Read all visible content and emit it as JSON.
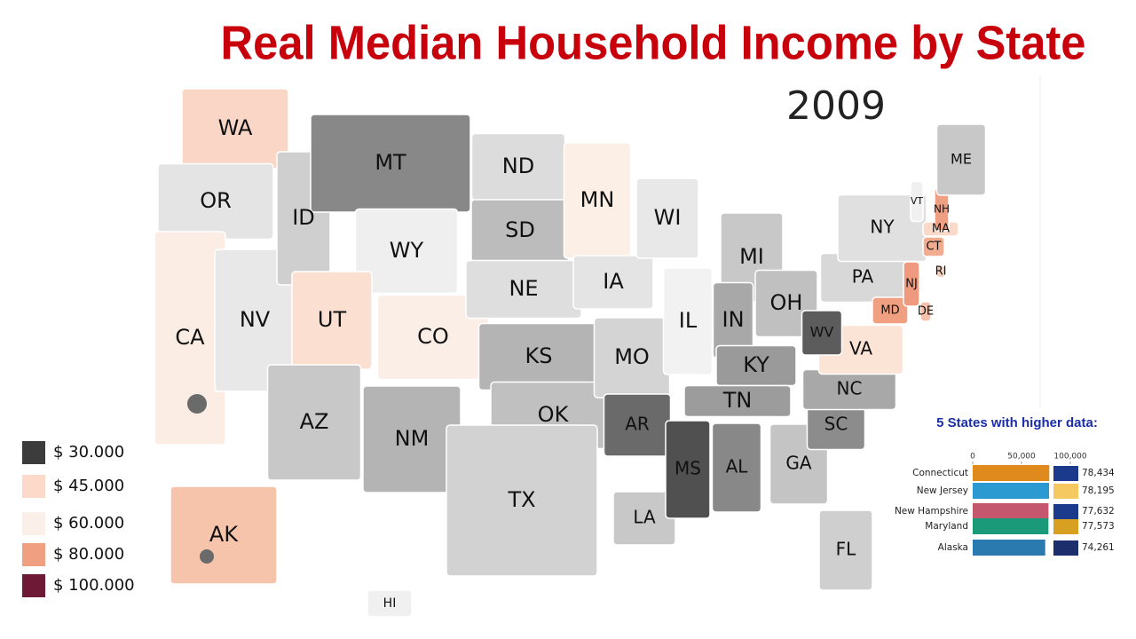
{
  "title": "Real Median Household Income by State",
  "year": "2009",
  "legend": [
    {
      "label": "$ 30.000",
      "color": "#3c3c3c"
    },
    {
      "label": "$ 45.000",
      "color": "#fcd9c8"
    },
    {
      "label": "$ 60.000",
      "color": "#fbefe9"
    },
    {
      "label": "$ 80.000",
      "color": "#f0a080"
    },
    {
      "label": "$ 100.000",
      "color": "#6e1a36"
    }
  ],
  "states": [
    {
      "label": "WA",
      "color": "#f9d6c6"
    },
    {
      "label": "OR",
      "color": "#e4e4e4"
    },
    {
      "label": "CA",
      "color": "#fbece4"
    },
    {
      "label": "NV",
      "color": "#e8e8e8"
    },
    {
      "label": "ID",
      "color": "#cfcfcf"
    },
    {
      "label": "MT",
      "color": "#888888"
    },
    {
      "label": "WY",
      "color": "#efefef"
    },
    {
      "label": "UT",
      "color": "#fbe0d2"
    },
    {
      "label": "CO",
      "color": "#fbeee6"
    },
    {
      "label": "AZ",
      "color": "#c8c8c8"
    },
    {
      "label": "NM",
      "color": "#b4b4b4"
    },
    {
      "label": "ND",
      "color": "#dcdcdc"
    },
    {
      "label": "SD",
      "color": "#bcbcbc"
    },
    {
      "label": "NE",
      "color": "#dedede"
    },
    {
      "label": "KS",
      "color": "#b4b4b4"
    },
    {
      "label": "OK",
      "color": "#c0c0c0"
    },
    {
      "label": "TX",
      "color": "#d2d2d2"
    },
    {
      "label": "MN",
      "color": "#fcefe6"
    },
    {
      "label": "IA",
      "color": "#e4e4e4"
    },
    {
      "label": "MO",
      "color": "#d4d4d4"
    },
    {
      "label": "AR",
      "color": "#6a6a6a"
    },
    {
      "label": "LA",
      "color": "#c8c8c8"
    },
    {
      "label": "WI",
      "color": "#e8e8e8"
    },
    {
      "label": "IL",
      "color": "#f2f2f2"
    },
    {
      "label": "MI",
      "color": "#c8c8c8"
    },
    {
      "label": "IN",
      "color": "#a8a8a8"
    },
    {
      "label": "OH",
      "color": "#c0c0c0"
    },
    {
      "label": "KY",
      "color": "#9a9a9a"
    },
    {
      "label": "TN",
      "color": "#9c9c9c"
    },
    {
      "label": "MS",
      "color": "#505050"
    },
    {
      "label": "AL",
      "color": "#888888"
    },
    {
      "label": "GA",
      "color": "#c4c4c4"
    },
    {
      "label": "FL",
      "color": "#cfcfcf"
    },
    {
      "label": "SC",
      "color": "#8c8c8c"
    },
    {
      "label": "NC",
      "color": "#a8a8a8"
    },
    {
      "label": "VA",
      "color": "#fbe3d6"
    },
    {
      "label": "WV",
      "color": "#5c5c5c"
    },
    {
      "label": "PA",
      "color": "#d8d8d8"
    },
    {
      "label": "NY",
      "color": "#e0e0e0"
    },
    {
      "label": "MD",
      "color": "#f0a080"
    },
    {
      "label": "DE",
      "color": "#f6c2ab"
    },
    {
      "label": "NJ",
      "color": "#ef9a7f"
    },
    {
      "label": "CT",
      "color": "#f2ac8f"
    },
    {
      "label": "RI",
      "color": "#f6d2c0"
    },
    {
      "label": "MA",
      "color": "#fad9c9"
    },
    {
      "label": "VT",
      "color": "#f0f0f0"
    },
    {
      "label": "NH",
      "color": "#ef9f82"
    },
    {
      "label": "ME",
      "color": "#c8c8c8"
    },
    {
      "label": "AK",
      "color": "#f6c3ab"
    },
    {
      "label": "HI",
      "color": "#f0f0f0"
    }
  ],
  "chart_data": {
    "type": "bar",
    "orientation": "horizontal",
    "title": "5 States with higher data:",
    "categories": [
      "Connecticut",
      "New Jersey",
      "New Hampshire",
      "Maryland",
      "Alaska"
    ],
    "values": [
      78434,
      78195,
      77632,
      77573,
      74261
    ],
    "value_labels": [
      "78,434",
      "78,195",
      "77,632",
      "77,573",
      "74,261"
    ],
    "colors": [
      "#e08a1e",
      "#2a9ad0",
      "#c4566e",
      "#1a9a78",
      "#2a7ab0"
    ],
    "xlim": [
      0,
      110000
    ],
    "xticks": [
      0,
      {
        "value": 50000,
        "label": "50,000"
      },
      {
        "value": 100000,
        "label": "100,000"
      }
    ]
  }
}
